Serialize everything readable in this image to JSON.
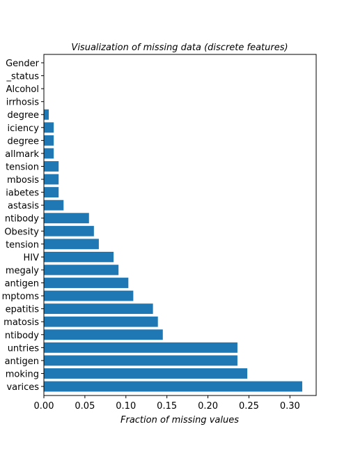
{
  "chart_data": {
    "type": "bar",
    "orientation": "horizontal",
    "title": "Visualization of missing data (discrete features)",
    "xlabel": "Fraction of missing values",
    "ylabel": "",
    "xlim": [
      0,
      0.332
    ],
    "xticks": [
      "0.00",
      "0.05",
      "0.10",
      "0.15",
      "0.20",
      "0.25",
      "0.30"
    ],
    "bar_color": "#1f77b4",
    "grid": false,
    "legend": "none",
    "categories": [
      "Gender",
      "_status",
      "Alcohol",
      "irrhosis",
      "degree",
      "iciency",
      "degree",
      "allmark",
      "tension",
      "mbosis",
      "iabetes",
      "astasis",
      "ntibody",
      "Obesity",
      "tension",
      "HIV",
      "megaly",
      "antigen",
      "mptoms",
      "epatitis",
      "matosis",
      "ntibody",
      "untries",
      "antigen",
      "moking",
      "varices"
    ],
    "values": [
      0.0,
      0.0,
      0.0,
      0.0,
      0.006,
      0.012,
      0.012,
      0.012,
      0.018,
      0.018,
      0.018,
      0.024,
      0.055,
      0.061,
      0.067,
      0.085,
      0.091,
      0.103,
      0.109,
      0.133,
      0.139,
      0.145,
      0.236,
      0.236,
      0.248,
      0.315
    ]
  }
}
